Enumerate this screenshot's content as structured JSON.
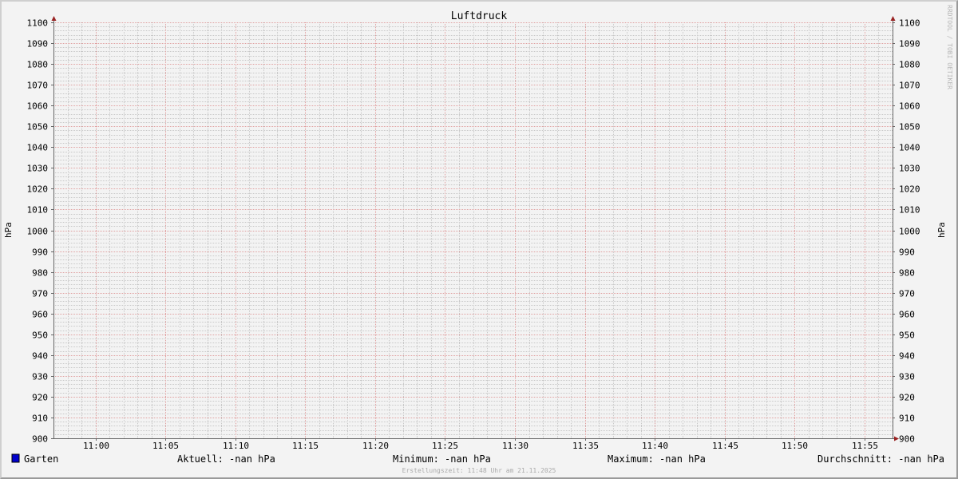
{
  "chart_data": {
    "type": "line",
    "title": "Luftdruck",
    "ylabel": "hPa",
    "ylabel_right": "hPa",
    "ylim": [
      900,
      1100
    ],
    "y_major_step": 10,
    "y_minor_step": 2,
    "yticks": [
      900,
      910,
      920,
      930,
      940,
      950,
      960,
      970,
      980,
      990,
      1000,
      1010,
      1020,
      1030,
      1040,
      1050,
      1060,
      1070,
      1080,
      1090,
      1100
    ],
    "xlim": [
      "10:57",
      "11:57"
    ],
    "xticks": [
      "11:00",
      "11:05",
      "11:10",
      "11:15",
      "11:20",
      "11:25",
      "11:30",
      "11:35",
      "11:40",
      "11:45",
      "11:50",
      "11:55"
    ],
    "grid": true,
    "series": [
      {
        "name": "Garten",
        "color": "#0000cc",
        "values": []
      }
    ],
    "legend": {
      "series_name": "Garten",
      "current": "Aktuell: -nan hPa",
      "minimum": "Minimum: -nan hPa",
      "maximum": "Maximum: -nan hPa",
      "average": "Durchschnitt: -nan hPa"
    },
    "footer": "Erstellungszeit: 11:48 Uhr am 21.11.2025",
    "watermark": "RRDTOOL / TOBI OETIKER"
  },
  "colors": {
    "major_grid": "#e0a0a0",
    "minor_grid": "#c8c8c8",
    "axis": "#666666",
    "arrow": "#992222",
    "series": "#0000cc"
  }
}
